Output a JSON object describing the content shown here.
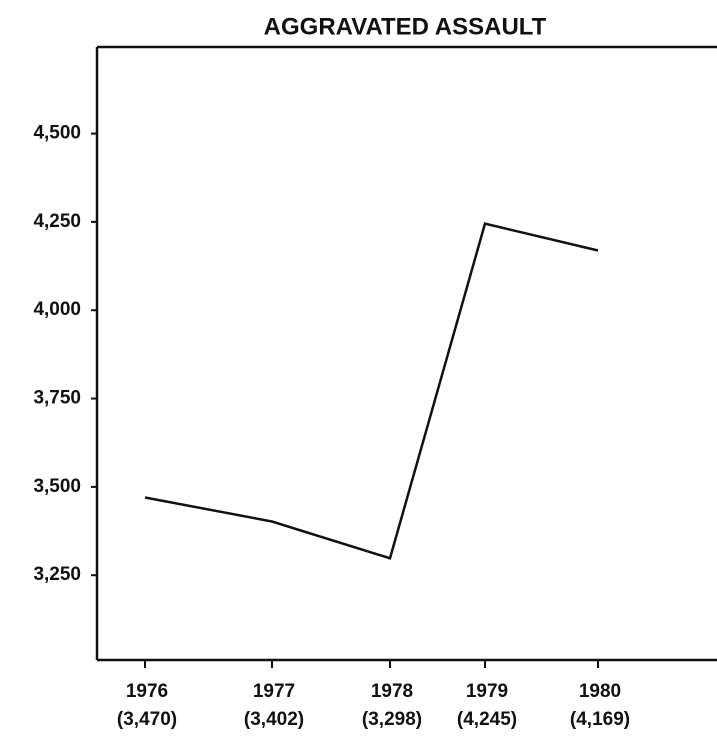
{
  "chart_data": {
    "type": "line",
    "title": "AGGRAVATED ASSAULT",
    "categories": [
      "1976",
      "1977",
      "1978",
      "1979",
      "1980"
    ],
    "values": [
      3470,
      3402,
      3298,
      4245,
      4169
    ],
    "value_labels": [
      "(3,470)",
      "(3,402)",
      "(3,298)",
      "(4,245)",
      "(4,169)"
    ],
    "color": "#111111",
    "ylim": [
      3010,
      4745
    ],
    "yticks": [
      {
        "value": 3250,
        "label": "3,250"
      },
      {
        "value": 3500,
        "label": "3,500"
      },
      {
        "value": 3750,
        "label": "3,750"
      },
      {
        "value": 4000,
        "label": "4,000"
      },
      {
        "value": 4250,
        "label": "4,250"
      },
      {
        "value": 4500,
        "label": "4,500"
      }
    ],
    "grid": false
  }
}
